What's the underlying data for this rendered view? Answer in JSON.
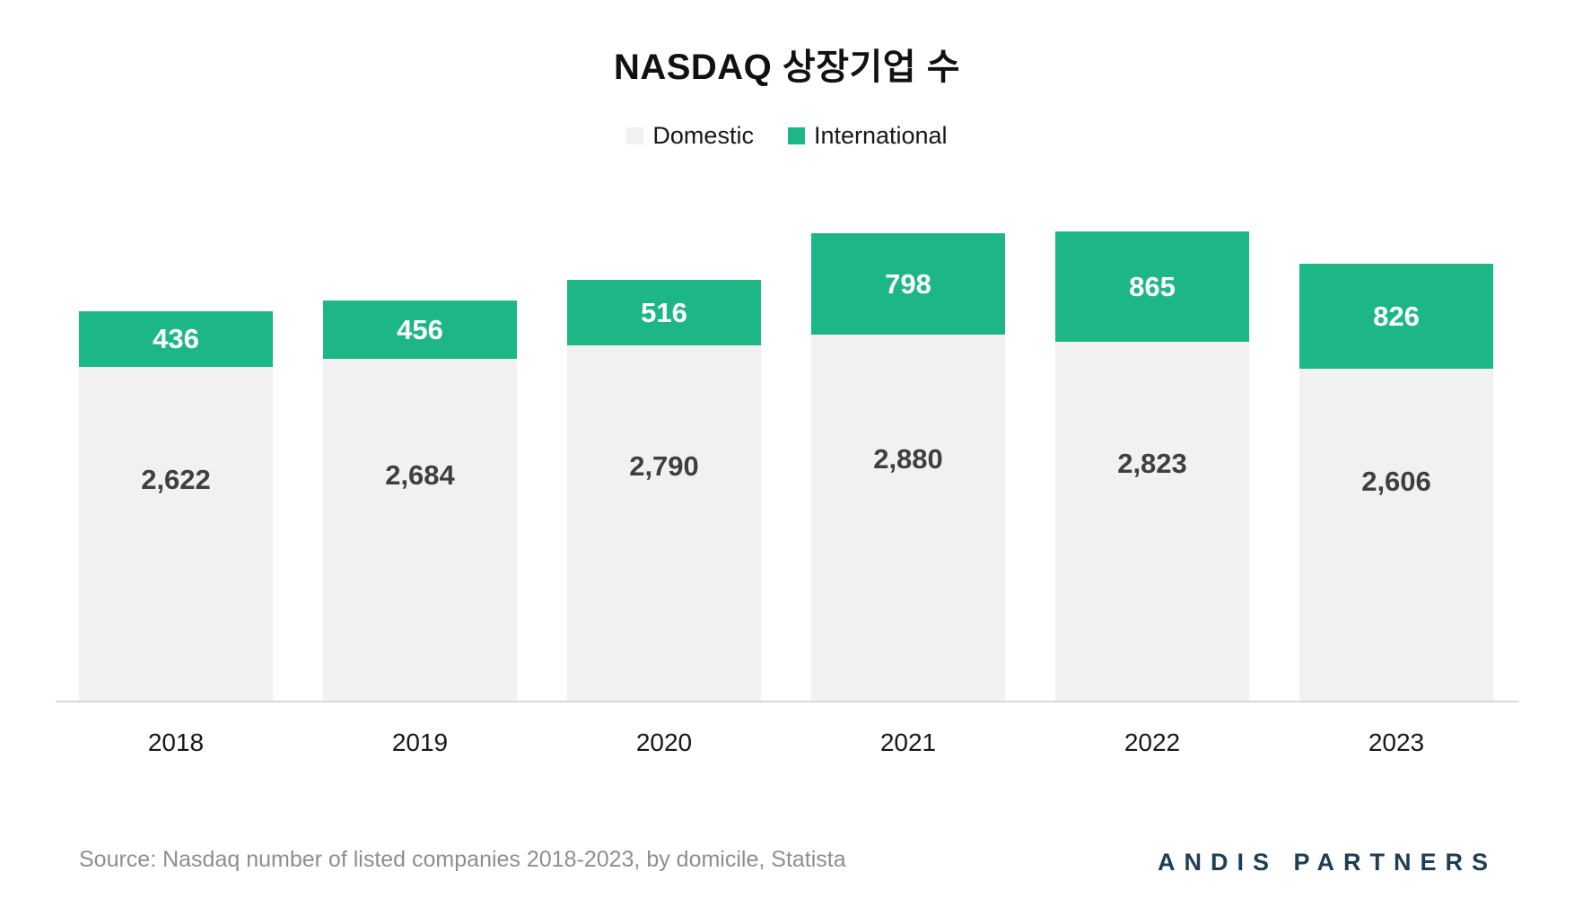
{
  "title": "NASDAQ 상장기업 수",
  "legend": {
    "items": [
      {
        "label": "Domestic",
        "color": "#f1f1f1"
      },
      {
        "label": "International",
        "color": "#1db687"
      }
    ]
  },
  "chart_data": {
    "type": "bar",
    "stacked": true,
    "title": "NASDAQ 상장기업 수",
    "categories": [
      "2018",
      "2019",
      "2020",
      "2021",
      "2022",
      "2023"
    ],
    "series": [
      {
        "name": "Domestic",
        "color": "#f1f1f1",
        "label_color": "#3f3f3f",
        "values": [
          2622,
          2684,
          2790,
          2880,
          2823,
          2606
        ]
      },
      {
        "name": "International",
        "color": "#1db687",
        "label_color": "#ffffff",
        "values": [
          436,
          456,
          516,
          798,
          865,
          826
        ]
      }
    ],
    "legend_position": "top",
    "grid": false,
    "value_labels": "inside",
    "number_format": "thousands-comma"
  },
  "footer": {
    "source": "Source: Nasdaq number of listed companies 2018-2023, by domicile, Statista",
    "logo": "ANDIS PARTNERS"
  },
  "colors": {
    "international": "#1db687",
    "domestic_bar": "#f1f1f1",
    "axis_line": "#d9d9d9",
    "domestic_label": "#3f3f3f",
    "title_text": "#111111",
    "source_text": "#8e8e8e",
    "logo_text": "#1d3e53"
  }
}
